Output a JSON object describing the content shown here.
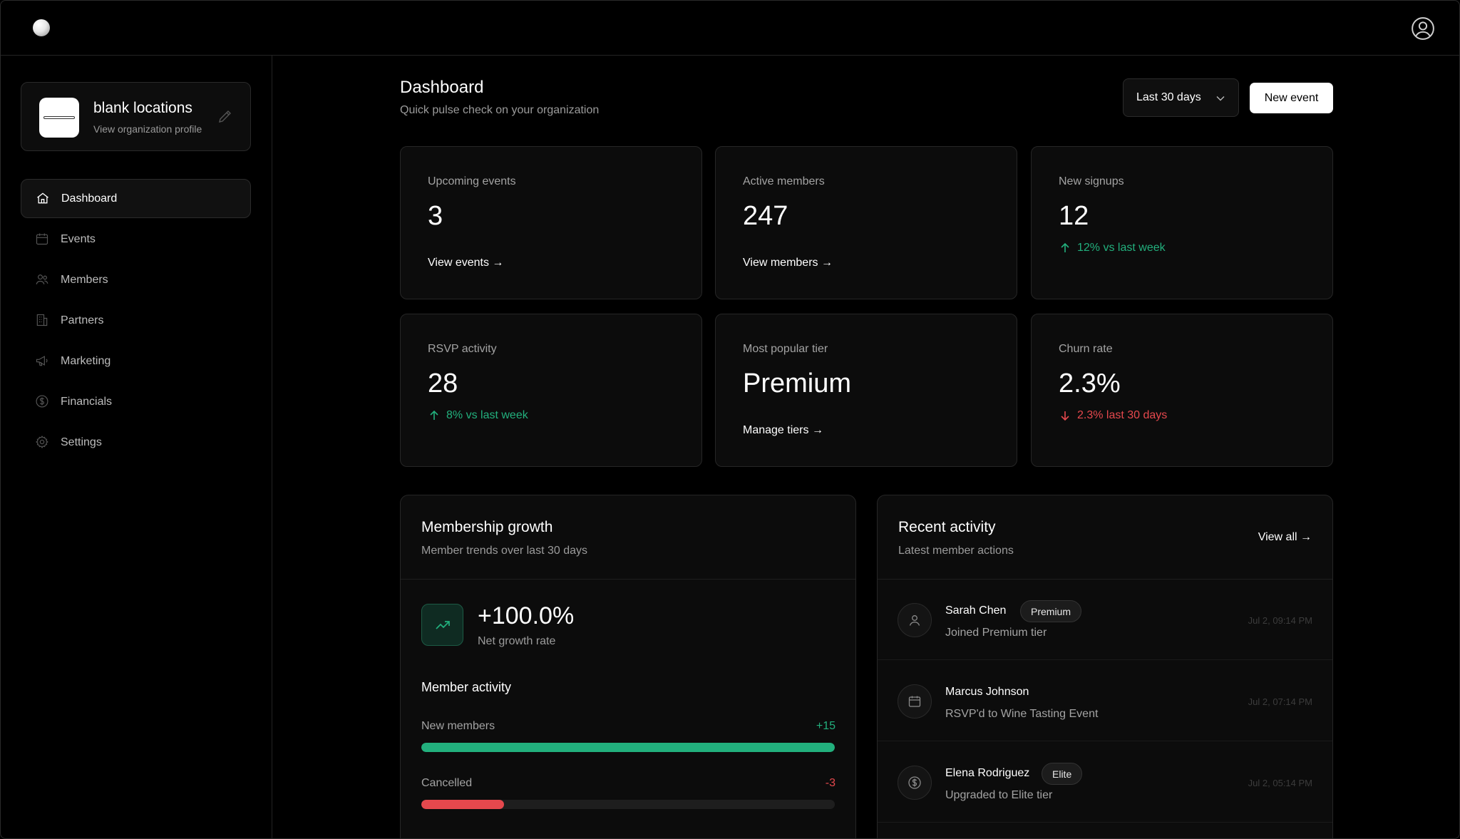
{
  "org": {
    "name": "blank locations",
    "subtitle": "View organization profile"
  },
  "sidebar": {
    "items": [
      {
        "label": "Dashboard",
        "icon": "home-icon",
        "active": true
      },
      {
        "label": "Events",
        "icon": "calendar-icon"
      },
      {
        "label": "Members",
        "icon": "users-icon"
      },
      {
        "label": "Partners",
        "icon": "building-icon"
      },
      {
        "label": "Marketing",
        "icon": "megaphone-icon"
      },
      {
        "label": "Financials",
        "icon": "dollar-icon"
      },
      {
        "label": "Settings",
        "icon": "gear-icon"
      }
    ]
  },
  "header": {
    "title": "Dashboard",
    "subtitle": "Quick pulse check on your organization",
    "range_label": "Last 30 days",
    "new_event_label": "New event"
  },
  "stats": {
    "upcoming": {
      "label": "Upcoming events",
      "value": "3",
      "link": "View events →"
    },
    "active": {
      "label": "Active members",
      "value": "247",
      "link": "View members →"
    },
    "signups": {
      "label": "New signups",
      "value": "12",
      "trend": "12% vs last week"
    },
    "rsvp": {
      "label": "RSVP activity",
      "value": "28",
      "trend": "8% vs last week"
    },
    "tier": {
      "label": "Most popular tier",
      "value": "Premium",
      "link": "Manage tiers →"
    },
    "churn": {
      "label": "Churn rate",
      "value": "2.3%",
      "trend": "2.3% last 30 days"
    }
  },
  "growth": {
    "title": "Membership growth",
    "subtitle": "Member trends over last 30 days",
    "rate": "+100.0%",
    "rate_label": "Net growth rate",
    "activity_title": "Member activity",
    "new_members": {
      "label": "New members",
      "value": "+15",
      "fill": 1.0,
      "color": "#22b07d"
    },
    "cancelled": {
      "label": "Cancelled",
      "value": "-3",
      "fill": 0.2,
      "color": "#e5484d"
    }
  },
  "recent": {
    "title": "Recent activity",
    "subtitle": "Latest member actions",
    "view_all": "View all →",
    "items": [
      {
        "name": "Sarah Chen",
        "badge": "Premium",
        "desc": "Joined Premium tier",
        "time": "Jul 2, 09:14 PM",
        "icon": "user-icon"
      },
      {
        "name": "Marcus Johnson",
        "badge": "",
        "desc": "RSVP'd to Wine Tasting Event",
        "time": "Jul 2, 07:14 PM",
        "icon": "calendar-icon"
      },
      {
        "name": "Elena Rodriguez",
        "badge": "Elite",
        "desc": "Upgraded to Elite tier",
        "time": "Jul 2, 05:14 PM",
        "icon": "dollar-icon"
      }
    ]
  },
  "colors": {
    "accent_green": "#22b07d",
    "accent_red": "#e5484d",
    "background": "#000000",
    "card": "#0c0c0c"
  }
}
